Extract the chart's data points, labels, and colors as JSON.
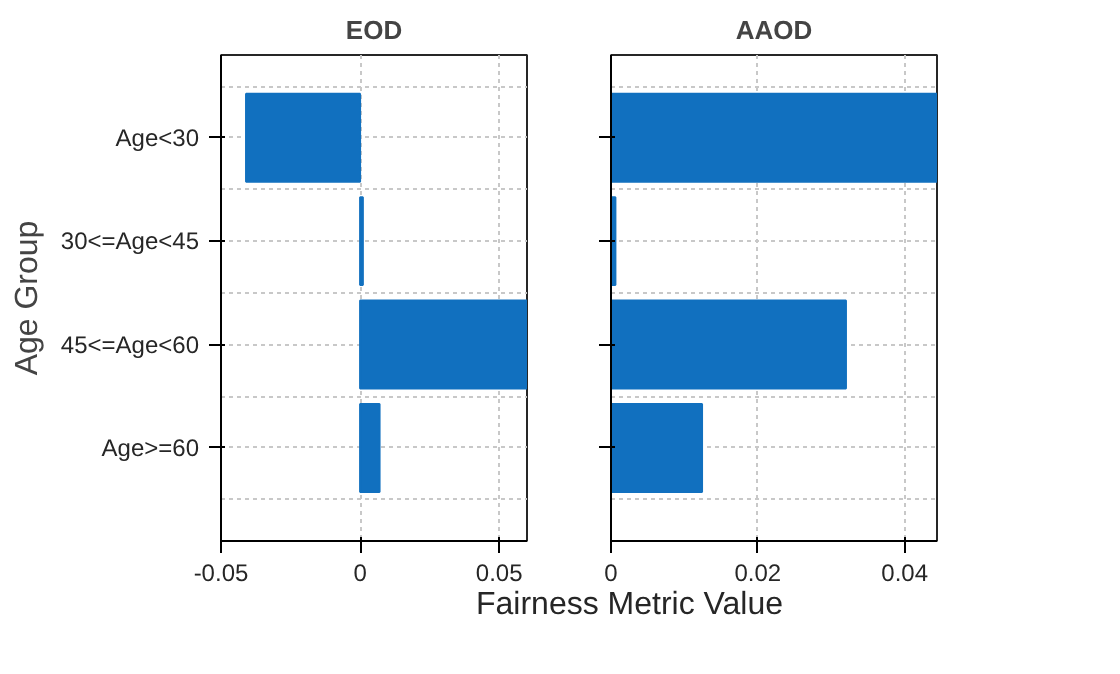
{
  "chart_data": [
    {
      "type": "bar",
      "orientation": "horizontal",
      "title": "EOD",
      "ylabel": "Age Group",
      "xlabel": "Fairness Metric Value",
      "categories": [
        "Age<30",
        "30<=Age<45",
        "45<=Age<60",
        "Age>=60"
      ],
      "values": [
        -0.041,
        0.001,
        0.06,
        0.007
      ],
      "color": "#1170bf",
      "xlim": [
        -0.05,
        0.06
      ],
      "xticks": [
        {
          "value": -0.05,
          "label": "-0.05"
        },
        0,
        0.05
      ],
      "grid": true
    },
    {
      "type": "bar",
      "orientation": "horizontal",
      "title": "AAOD",
      "categories": [
        null,
        null,
        null,
        null
      ],
      "values": [
        0.0444,
        0.0006,
        0.032,
        0.0124
      ],
      "color": "#1170bf",
      "xlim": [
        0,
        0.0444
      ],
      "xticks": [
        0,
        0.02,
        0.04
      ],
      "grid": true,
      "tick_labels": "x"
    }
  ]
}
